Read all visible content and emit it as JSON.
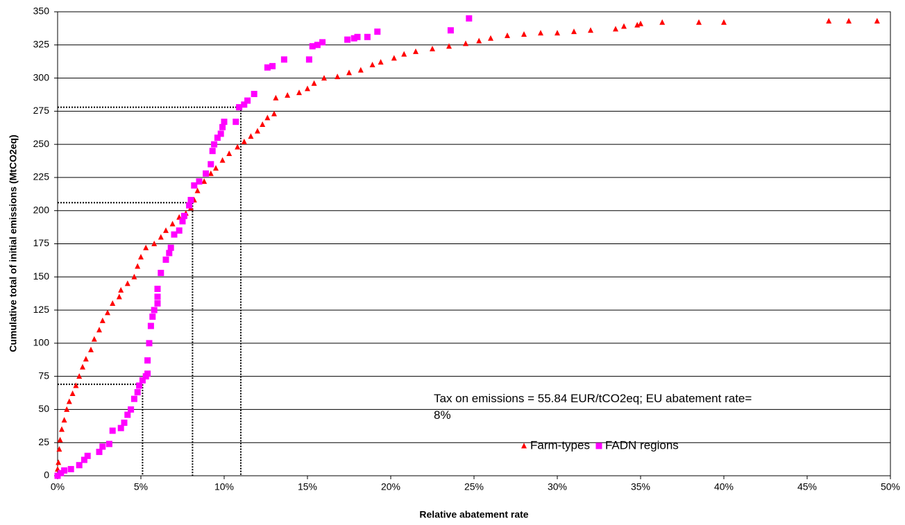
{
  "chart_data": {
    "type": "scatter",
    "x_label": "Relative abatement rate",
    "y_label": "Cumulative total of initial emissions (MtCO2eq)",
    "annotation": "Tax on emissions = 55.84 EUR/tCO2eq; EU abatement rate= 8%",
    "xlim": [
      0,
      50
    ],
    "ylim": [
      0,
      350
    ],
    "xticks": [
      {
        "value": 0,
        "label": "0%"
      },
      {
        "value": 5,
        "label": "5%"
      },
      {
        "value": 10,
        "label": "10%"
      },
      {
        "value": 15,
        "label": "15%"
      },
      {
        "value": 20,
        "label": "20%"
      },
      {
        "value": 25,
        "label": "25%"
      },
      {
        "value": 30,
        "label": "30%"
      },
      {
        "value": 35,
        "label": "35%"
      },
      {
        "value": 40,
        "label": "40%"
      },
      {
        "value": 45,
        "label": "45%"
      },
      {
        "value": 50,
        "label": "50%"
      }
    ],
    "yticks": [
      0,
      25,
      50,
      75,
      100,
      125,
      150,
      175,
      200,
      225,
      250,
      275,
      300,
      325,
      350
    ],
    "grid": true,
    "legend": "bottom-right",
    "reference_lines": [
      {
        "x": 5.1,
        "y": 69
      },
      {
        "x": 8.1,
        "y": 206
      },
      {
        "x": 11,
        "y": 278
      }
    ],
    "series": [
      {
        "name": "Farm-types",
        "color": "#ff0000",
        "marker": "triangle",
        "x": [
          0,
          0,
          0.05,
          0.1,
          0.15,
          0.25,
          0.4,
          0.55,
          0.7,
          0.9,
          1.1,
          1.3,
          1.5,
          1.7,
          2.0,
          2.2,
          2.5,
          2.7,
          3.0,
          3.3,
          3.7,
          3.8,
          4.2,
          4.6,
          4.8,
          5.0,
          5.3,
          5.8,
          6.2,
          6.5,
          6.9,
          7.3,
          7.7,
          8.0,
          8.2,
          8.4,
          8.8,
          9.2,
          9.5,
          9.9,
          10.3,
          10.8,
          11.2,
          11.6,
          12.0,
          12.3,
          12.6,
          13.0,
          13.1,
          13.8,
          14.5,
          15.0,
          15.4,
          16.0,
          16.8,
          17.5,
          18.2,
          18.9,
          19.4,
          20.2,
          20.8,
          21.5,
          22.5,
          23.5,
          24.5,
          25.3,
          26.0,
          27.0,
          28.0,
          29.0,
          30.0,
          31.0,
          32.0,
          33.5,
          34.0,
          34.8,
          35.0,
          36.3,
          38.5,
          40.0,
          46.3,
          47.5,
          49.2
        ],
        "values": [
          0,
          5,
          10,
          20,
          27,
          35,
          42,
          50,
          56,
          62,
          68,
          75,
          82,
          88,
          95,
          103,
          110,
          117,
          123,
          130,
          135,
          140,
          145,
          150,
          158,
          165,
          172,
          175,
          180,
          185,
          190,
          195,
          198,
          202,
          208,
          215,
          222,
          228,
          232,
          238,
          243,
          248,
          252,
          256,
          260,
          265,
          270,
          273,
          285,
          287,
          289,
          292,
          296,
          300,
          301,
          304,
          306,
          310,
          312,
          315,
          318,
          320,
          322,
          324,
          326,
          328,
          330,
          332,
          333,
          334,
          334,
          335,
          336,
          337,
          339,
          340,
          341,
          342,
          342,
          342,
          343,
          343,
          343
        ]
      },
      {
        "name": "FADN regions",
        "color": "#ff00ff",
        "marker": "square",
        "x": [
          0,
          0.2,
          0.4,
          0.8,
          1.3,
          1.6,
          1.8,
          2.5,
          2.7,
          3.1,
          3.3,
          3.8,
          4.0,
          4.2,
          4.4,
          4.6,
          4.8,
          4.9,
          5.1,
          5.3,
          5.4,
          5.4,
          5.5,
          5.6,
          5.7,
          5.8,
          6.0,
          6.0,
          6.0,
          6.2,
          6.5,
          6.7,
          6.8,
          7.0,
          7.3,
          7.5,
          7.6,
          7.9,
          8.0,
          8.2,
          8.5,
          8.9,
          9.2,
          9.3,
          9.4,
          9.6,
          9.8,
          9.9,
          10.0,
          10.7,
          10.9,
          11.2,
          11.4,
          11.8,
          12.6,
          12.9,
          13.6,
          15.1,
          15.3,
          15.6,
          15.9,
          17.4,
          17.8,
          18.0,
          18.6,
          19.2,
          23.6,
          24.7
        ],
        "values": [
          0,
          2,
          4,
          5,
          8,
          12,
          15,
          18,
          22,
          24,
          34,
          36,
          40,
          46,
          50,
          58,
          63,
          68,
          72,
          75,
          77,
          87,
          100,
          113,
          120,
          125,
          130,
          135,
          141,
          153,
          163,
          168,
          172,
          182,
          185,
          192,
          196,
          204,
          208,
          219,
          222,
          228,
          235,
          245,
          250,
          255,
          258,
          263,
          267,
          267,
          278,
          280,
          283,
          288,
          308,
          309,
          314,
          314,
          324,
          325,
          327,
          329,
          330,
          331,
          331,
          335,
          336,
          345
        ]
      }
    ]
  }
}
